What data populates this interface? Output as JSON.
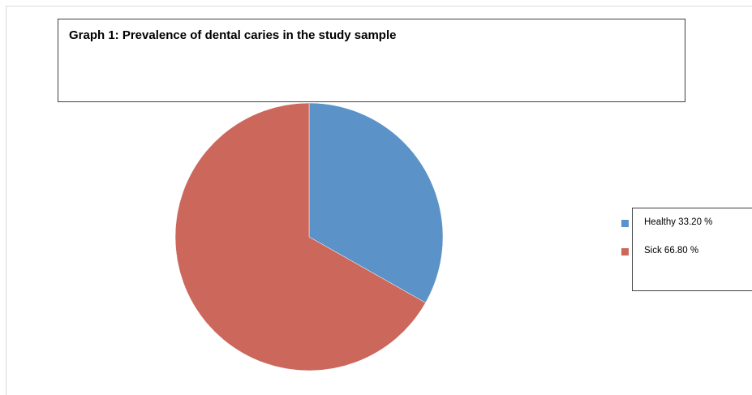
{
  "chart_data": {
    "type": "pie",
    "title": "Graph 1: Prevalence of dental caries in the study sample",
    "slices": [
      {
        "label": "Healthy",
        "value": 33.2,
        "legend_text": "Healthy 33.20 %",
        "color": "#5b93c8"
      },
      {
        "label": "Sick",
        "value": 66.8,
        "legend_text": "Sick 66.80 %",
        "color": "#cc675c"
      }
    ],
    "legend_position": "right"
  }
}
